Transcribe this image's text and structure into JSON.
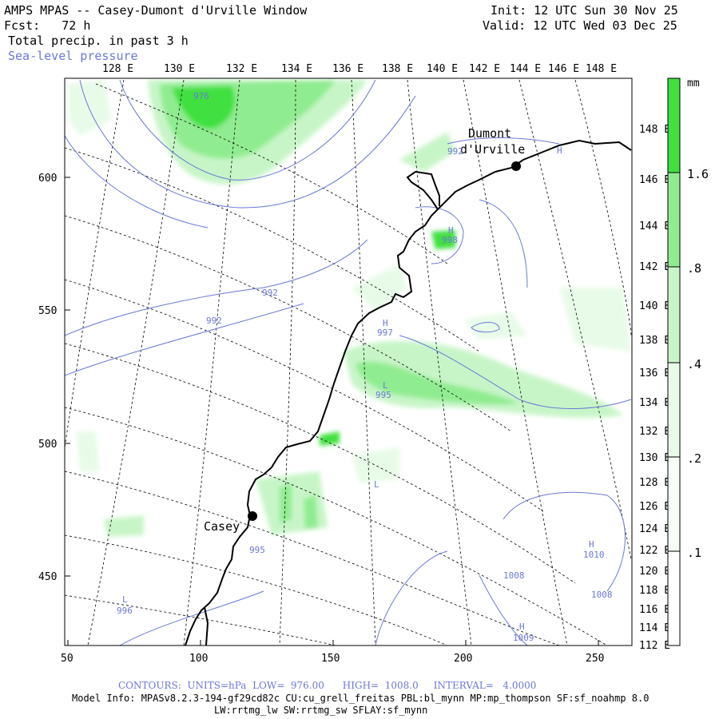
{
  "header": {
    "title": "AMPS MPAS -- Casey-Dumont d'Urville Window",
    "fcst": "Fcst:   72 h",
    "field": "Total precip. in past 3 h",
    "overlay": "Sea-level pressure",
    "init": "Init: 12 UTC Sun 30 Nov 25",
    "valid": "Valid: 12 UTC Wed 03 Dec 25"
  },
  "map": {
    "top_lon_labels": [
      "128 E",
      "130 E",
      "132 E",
      "134 E",
      "136 E",
      "138 E",
      "140 E",
      "142 E",
      "144 E",
      "146 E",
      "148 E"
    ],
    "right_lon_labels": [
      "148 E",
      "146 E",
      "144 E",
      "142 E",
      "140 E",
      "138 E",
      "136 E",
      "134 E",
      "132 E",
      "130 E",
      "128 E",
      "126 E",
      "124 E",
      "122 E",
      "120 E",
      "118 E",
      "116 E",
      "114 E",
      "112 E"
    ],
    "x_ticks": [
      "50",
      "100",
      "150",
      "200",
      "250"
    ],
    "y_ticks": [
      "600",
      "550",
      "500",
      "450"
    ],
    "places": [
      {
        "name": "Dumont",
        "name2": "d'Urville"
      },
      {
        "name": "Casey"
      }
    ],
    "pressure_labels": [
      "976",
      "992",
      "992",
      "992",
      "998",
      "997",
      "995",
      "995",
      "996",
      "1008",
      "1008",
      "1010",
      "1009",
      "H",
      "H",
      "H",
      "H",
      "H",
      "L",
      "L",
      "L"
    ]
  },
  "colorbar": {
    "unit": "mm",
    "levels": [
      "1.6",
      ".8",
      ".4",
      ".2",
      ".1"
    ],
    "colors": [
      "#40e040",
      "#90ec90",
      "#c8f5c8",
      "#e8fbe8",
      "#ffffff"
    ]
  },
  "footer": {
    "contours": "CONTOURS:  UNITS=hPa  LOW=  976.00      HIGH=  1008.0     INTERVAL=   4.0000",
    "model_info": "Model Info: MPASv8.2.3-194-gf29cd82c CU:cu_grell_freitas PBL:bl_mynn MP:mp_thompson SF:sf_noahmp 8.0",
    "model_info2": "LW:rrtmg_lw SW:rrtmg_sw SFLAY:sf_mynn"
  }
}
